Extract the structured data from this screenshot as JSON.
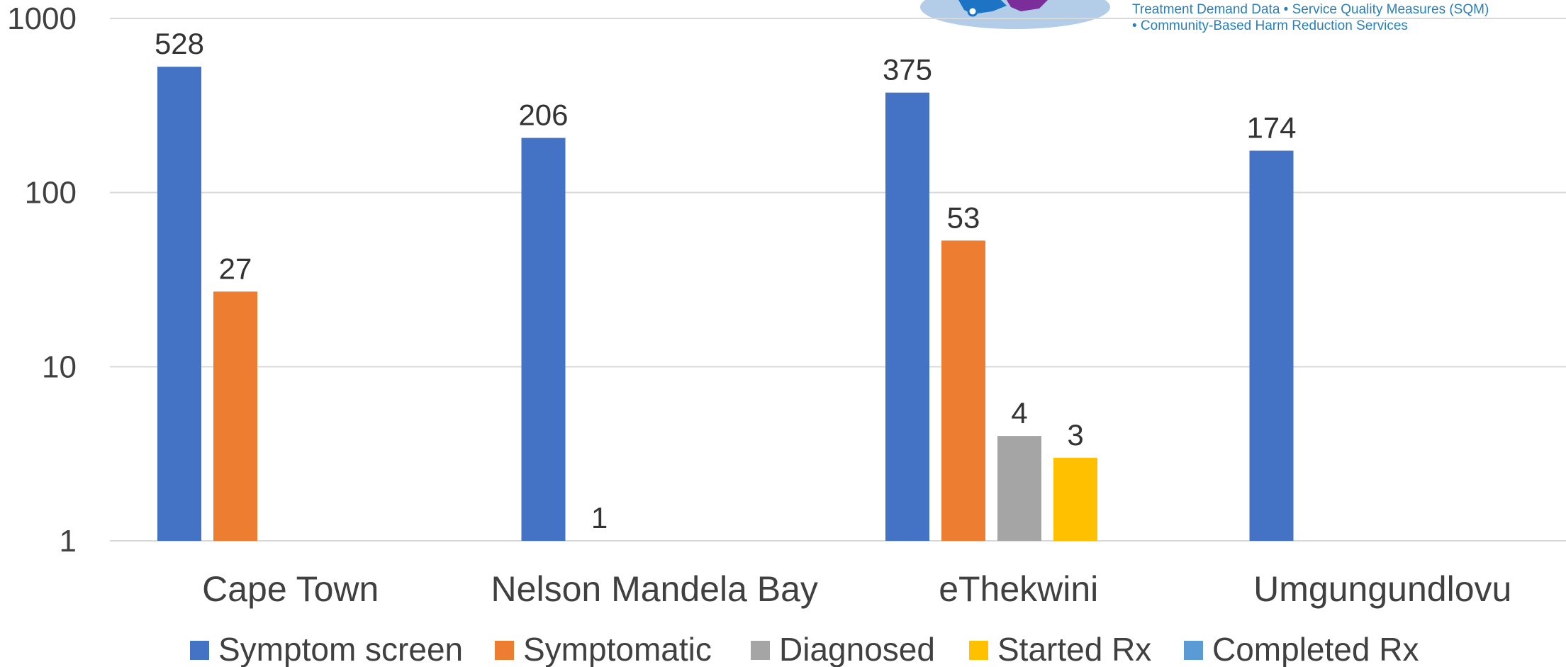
{
  "logo": {
    "line1": "Treatment Demand Data • Service Quality Measures (SQM)",
    "line2": "• Community-Based Harm Reduction Services"
  },
  "chart_data": {
    "type": "bar",
    "yscale": "log",
    "ylim": [
      1,
      1000
    ],
    "yticks": [
      1,
      10,
      100,
      1000
    ],
    "ytick_labels": [
      "1",
      "10",
      "100",
      "1000"
    ],
    "grid": true,
    "legend_position": "bottom",
    "categories": [
      "Cape Town",
      "Nelson Mandela Bay",
      "eThekwini",
      "Umgungundlovu"
    ],
    "series": [
      {
        "name": "Symptom screen",
        "color": "#4472C4",
        "values": [
          528,
          206,
          375,
          174
        ]
      },
      {
        "name": "Symptomatic",
        "color": "#ED7D31",
        "values": [
          27,
          1,
          53,
          null
        ]
      },
      {
        "name": "Diagnosed",
        "color": "#A5A5A5",
        "values": [
          null,
          null,
          4,
          null
        ]
      },
      {
        "name": "Started Rx",
        "color": "#FFC000",
        "values": [
          null,
          null,
          3,
          null
        ]
      },
      {
        "name": "Completed Rx",
        "color": "#5B9BD5",
        "values": [
          null,
          null,
          null,
          null
        ]
      }
    ]
  }
}
